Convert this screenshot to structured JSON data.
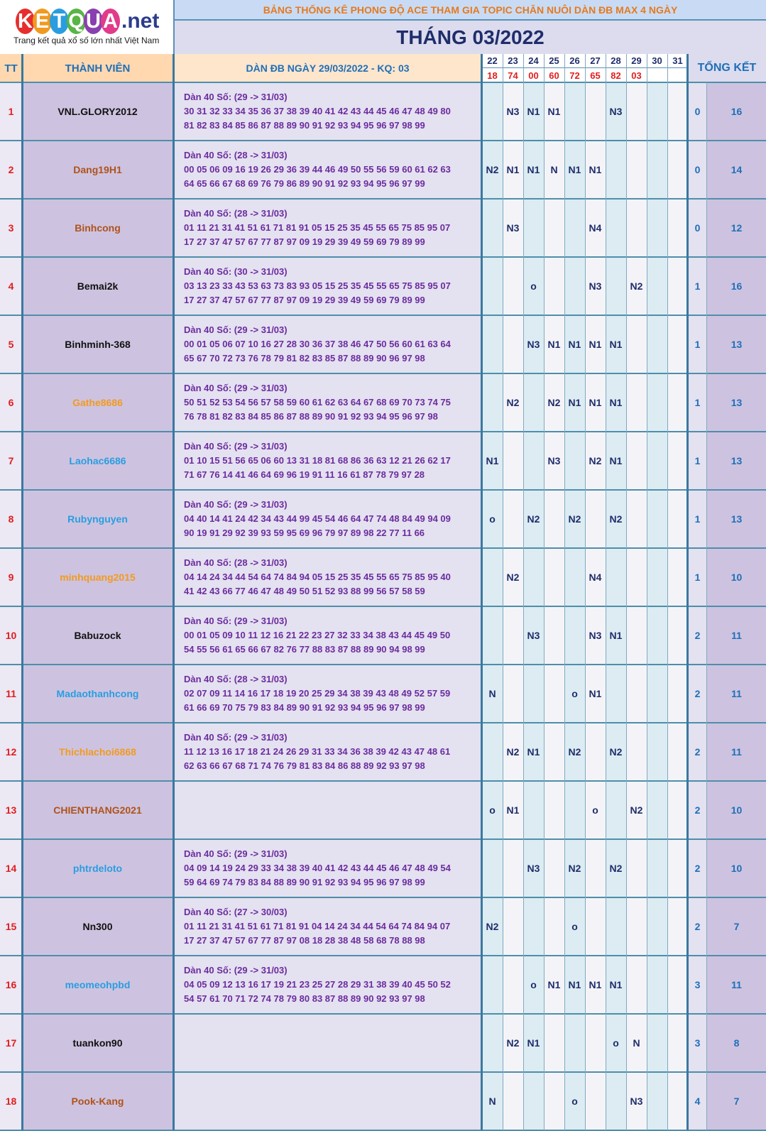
{
  "logo": {
    "letters": [
      "K",
      "E",
      "T",
      "Q",
      "U",
      "A"
    ],
    "colors": [
      "#e62e2e",
      "#f09a1f",
      "#2a9de0",
      "#58b546",
      "#8a3fb0",
      "#e23b8a"
    ],
    "suffix": ".net",
    "tagline": "Trang kết quả xổ số lớn nhất Việt Nam"
  },
  "banner": "BẢNG THỐNG KÊ PHONG ĐỘ ACE THAM GIA TOPIC CHĂN NUÔI DÀN ĐB MAX 4 NGÀY",
  "month": "THÁNG 03/2022",
  "headers": {
    "tt": "TT",
    "member": "THÀNH VIÊN",
    "dan": "DÀN ĐB NGÀY 29/03/2022 - KQ: 03",
    "total": "TỔNG KẾT"
  },
  "days": [
    "22",
    "23",
    "24",
    "25",
    "26",
    "27",
    "28",
    "29",
    "30",
    "31"
  ],
  "results": [
    "18",
    "74",
    "00",
    "60",
    "72",
    "65",
    "82",
    "03",
    "",
    ""
  ],
  "rows": [
    {
      "tt": "1",
      "name": "VNL.GLORY2012",
      "color": "#111111",
      "dan": [
        "Dàn 40 Số: (29 -> 31/03)",
        "30 31 32 33 34 35 36 37 38 39 40 41 42 43 44 45 46 47 48 49 80",
        "81 82 83 84 85 86 87 88 89 90 91 92 93 94 95 96 97 98 99"
      ],
      "marks": [
        "",
        "N3",
        "N1",
        "N1",
        "",
        "",
        "N3",
        "",
        "",
        ""
      ],
      "t1": "0",
      "t2": "16"
    },
    {
      "tt": "2",
      "name": "Dang19H1",
      "color": "#b0521a",
      "dan": [
        "Dàn 40 Số: (28 -> 31/03)",
        "00 05 06 09 16 19 26 29 36 39 44 46 49 50 55 56 59 60 61 62 63",
        "64 65 66 67 68 69 76 79 86 89 90 91 92 93 94 95 96 97 99"
      ],
      "marks": [
        "N2",
        "N1",
        "N1",
        "N",
        "N1",
        "N1",
        "",
        "",
        "",
        ""
      ],
      "t1": "0",
      "t2": "14"
    },
    {
      "tt": "3",
      "name": "Binhcong",
      "color": "#b0521a",
      "dan": [
        "Dàn 40 Số: (28 -> 31/03)",
        "01 11 21 31 41 51 61 71 81 91 05 15 25 35 45 55 65 75 85 95 07",
        "17 27 37 47 57 67 77 87 97 09 19 29 39 49 59 69 79 89 99"
      ],
      "marks": [
        "",
        "N3",
        "",
        "",
        "",
        "N4",
        "",
        "",
        "",
        ""
      ],
      "t1": "0",
      "t2": "12"
    },
    {
      "tt": "4",
      "name": "Bemai2k",
      "color": "#111111",
      "dan": [
        "Dàn 40 Số: (30 -> 31/03)",
        "03 13 23 33 43 53 63 73 83 93 05 15 25 35 45 55 65 75 85 95 07",
        "17 27 37 47 57 67 77 87 97 09 19 29 39 49 59 69 79 89 99"
      ],
      "marks": [
        "",
        "",
        "o",
        "",
        "",
        "N3",
        "",
        "N2",
        "",
        ""
      ],
      "t1": "1",
      "t2": "16"
    },
    {
      "tt": "5",
      "name": "Binhminh-368",
      "color": "#111111",
      "dan": [
        "Dàn 40 Số: (29 -> 31/03)",
        "00 01 05 06 07 10 16 27 28 30 36 37 38 46 47 50 56 60 61 63 64",
        "65 67 70 72 73 76 78 79 81 82 83 85 87 88 89 90 96 97 98"
      ],
      "marks": [
        "",
        "",
        "N3",
        "N1",
        "N1",
        "N1",
        "N1",
        "",
        "",
        ""
      ],
      "t1": "1",
      "t2": "13"
    },
    {
      "tt": "6",
      "name": "Gathe8686",
      "color": "#f39a1f",
      "dan": [
        "Dàn 40 Số: (29 -> 31/03)",
        "50 51 52 53 54 56 57 58 59 60 61 62 63 64 67 68 69 70 73 74 75",
        "76 78 81 82 83 84 85 86 87 88 89 90 91 92 93 94 95 96 97 98"
      ],
      "marks": [
        "",
        "N2",
        "",
        "N2",
        "N1",
        "N1",
        "N1",
        "",
        "",
        ""
      ],
      "t1": "1",
      "t2": "13"
    },
    {
      "tt": "7",
      "name": "Laohac6686",
      "color": "#2a9de0",
      "dan": [
        "Dàn 40 Số: (29 -> 31/03)",
        "01 10 15 51 56 65 06 60 13 31 18 81 68 86 36 63 12 21 26 62 17",
        "71 67 76 14 41 46 64 69 96 19 91 11 16 61 87 78 79 97 28"
      ],
      "marks": [
        "N1",
        "",
        "",
        "N3",
        "",
        "N2",
        "N1",
        "",
        "",
        ""
      ],
      "t1": "1",
      "t2": "13"
    },
    {
      "tt": "8",
      "name": "Rubynguyen",
      "color": "#2a9de0",
      "dan": [
        "Dàn 40 Số: (29 -> 31/03)",
        "04 40 14 41 24 42 34 43 44 99 45 54 46 64 47 74 48 84 49 94 09",
        "90 19 91 29 92 39 93 59 95 69 96 79 97 89 98 22 77 11 66"
      ],
      "marks": [
        "o",
        "",
        "N2",
        "",
        "N2",
        "",
        "N2",
        "",
        "",
        ""
      ],
      "t1": "1",
      "t2": "13"
    },
    {
      "tt": "9",
      "name": "minhquang2015",
      "color": "#f39a1f",
      "dan": [
        "Dàn 40 Số: (28 -> 31/03)",
        "04 14 24 34 44 54 64 74 84 94 05 15 25 35 45 55 65 75 85 95 40",
        "41 42 43 66 77 46 47 48 49 50 51 52 93 88 99 56 57 58 59"
      ],
      "marks": [
        "",
        "N2",
        "",
        "",
        "",
        "N4",
        "",
        "",
        "",
        ""
      ],
      "t1": "1",
      "t2": "10"
    },
    {
      "tt": "10",
      "name": "Babuzock",
      "color": "#111111",
      "dan": [
        "Dàn 40 Số: (29 -> 31/03)",
        "00 01 05 09 10 11 12 16 21 22 23 27 32 33 34 38 43 44 45 49 50",
        "54 55 56 61 65 66 67 82 76 77 88 83 87 88 89 90 94 98 99"
      ],
      "marks": [
        "",
        "",
        "N3",
        "",
        "",
        "N3",
        "N1",
        "",
        "",
        ""
      ],
      "t1": "2",
      "t2": "11"
    },
    {
      "tt": "11",
      "name": "Madaothanhcong",
      "color": "#2a9de0",
      "dan": [
        "Dàn 40 Số: (28 -> 31/03)",
        "02 07 09 11 14 16 17 18 19 20 25 29 34 38 39 43 48 49 52 57 59",
        "61 66 69 70 75 79 83 84 89 90 91 92 93 94 95 96 97 98 99"
      ],
      "marks": [
        "N",
        "",
        "",
        "",
        "o",
        "N1",
        "",
        "",
        "",
        ""
      ],
      "t1": "2",
      "t2": "11"
    },
    {
      "tt": "12",
      "name": "Thichlachoi6868",
      "color": "#f39a1f",
      "dan": [
        "Dàn 40 Số: (29 -> 31/03)",
        "11 12 13 16 17 18 21 24 26 29 31 33 34 36 38 39 42 43 47 48 61",
        "62 63 66 67 68 71 74 76 79 81 83 84 86 88 89 92 93 97 98"
      ],
      "marks": [
        "",
        "N2",
        "N1",
        "",
        "N2",
        "",
        "N2",
        "",
        "",
        ""
      ],
      "t1": "2",
      "t2": "11"
    },
    {
      "tt": "13",
      "name": "CHIENTHANG2021",
      "color": "#b0521a",
      "dan": [],
      "marks": [
        "o",
        "N1",
        "",
        "",
        "",
        "o",
        "",
        "N2",
        "",
        ""
      ],
      "t1": "2",
      "t2": "10"
    },
    {
      "tt": "14",
      "name": "phtrdeloto",
      "color": "#2a9de0",
      "dan": [
        "Dàn 40 Số: (29 -> 31/03)",
        "04 09 14 19 24 29 33 34 38 39 40 41 42 43 44 45 46 47 48 49 54",
        "59 64 69 74 79 83 84 88 89 90 91 92 93 94 95 96 97 98 99"
      ],
      "marks": [
        "",
        "",
        "N3",
        "",
        "N2",
        "",
        "N2",
        "",
        "",
        ""
      ],
      "t1": "2",
      "t2": "10"
    },
    {
      "tt": "15",
      "name": "Nn300",
      "color": "#111111",
      "dan": [
        "Dàn 40 Số: (27 -> 30/03)",
        "01 11 21 31 41 51 61 71 81 91 04 14 24 34 44 54 64 74 84 94 07",
        "17 27 37 47 57 67 77 87 97 08 18 28 38 48 58 68 78 88 98"
      ],
      "marks": [
        "N2",
        "",
        "",
        "",
        "o",
        "",
        "",
        "",
        "",
        ""
      ],
      "t1": "2",
      "t2": "7"
    },
    {
      "tt": "16",
      "name": "meomeohpbd",
      "color": "#2a9de0",
      "dan": [
        "Dàn 40 Số: (29 -> 31/03)",
        "04 05 09 12 13 16 17 19 21 23 25 27 28 29 31 38 39 40 45 50 52",
        "54 57 61 70 71 72 74 78 79 80 83 87 88 89 90 92 93 97 98"
      ],
      "marks": [
        "",
        "",
        "o",
        "N1",
        "N1",
        "N1",
        "N1",
        "",
        "",
        ""
      ],
      "t1": "3",
      "t2": "11"
    },
    {
      "tt": "17",
      "name": "tuankon90",
      "color": "#111111",
      "dan": [],
      "marks": [
        "",
        "N2",
        "N1",
        "",
        "",
        "",
        "o",
        "N",
        "",
        ""
      ],
      "t1": "3",
      "t2": "8"
    },
    {
      "tt": "18",
      "name": "Pook-Kang",
      "color": "#b0521a",
      "dan": [],
      "marks": [
        "N",
        "",
        "",
        "",
        "o",
        "",
        "",
        "N3",
        "",
        ""
      ],
      "t1": "4",
      "t2": "7"
    }
  ]
}
